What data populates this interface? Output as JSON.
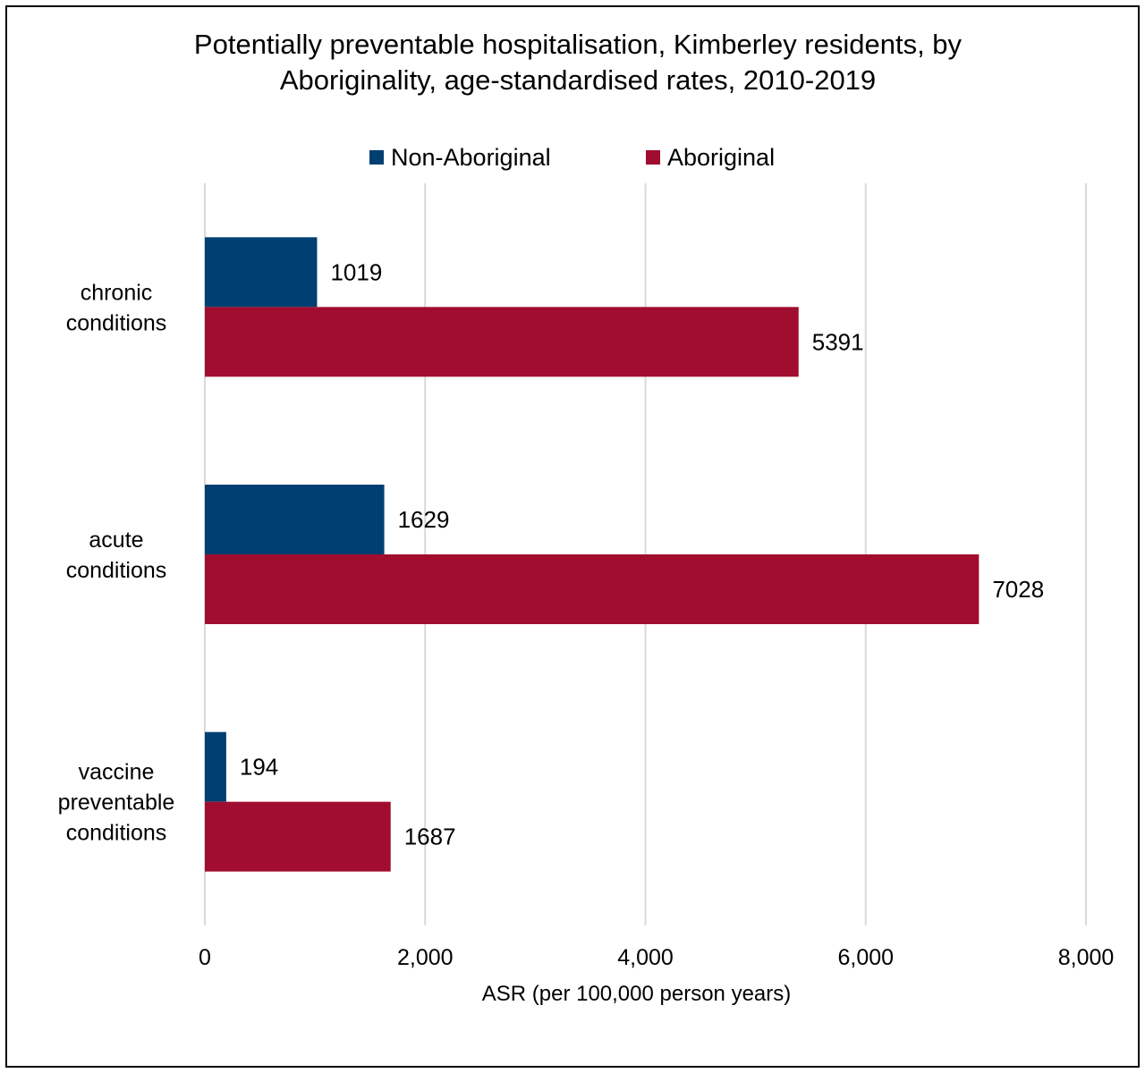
{
  "chart_data": {
    "type": "bar",
    "orientation": "horizontal",
    "title_lines": [
      "Potentially preventable hospitalisation, Kimberley residents, by",
      "Aboriginality, age-standardised rates, 2010-2019"
    ],
    "categories": [
      [
        "chronic",
        "conditions"
      ],
      [
        "acute",
        "conditions"
      ],
      [
        "vaccine",
        "preventable",
        "conditions"
      ]
    ],
    "series": [
      {
        "name": "Non-Aboriginal",
        "color": "#003f72",
        "values": [
          1019,
          1629,
          194
        ]
      },
      {
        "name": "Aboriginal",
        "color": "#a00d2e",
        "values": [
          5391,
          7028,
          1687
        ]
      }
    ],
    "xlim": [
      0,
      8000
    ],
    "xticks": [
      0,
      2000,
      4000,
      6000,
      8000
    ],
    "xtick_labels": [
      "0",
      "2,000",
      "4,000",
      "6,000",
      "8,000"
    ],
    "xlabel": "ASR (per 100,000 person years)",
    "ylabel": "",
    "grid": "vertical",
    "legend_position": "top-center",
    "grid_color": "#d9d9d9"
  }
}
